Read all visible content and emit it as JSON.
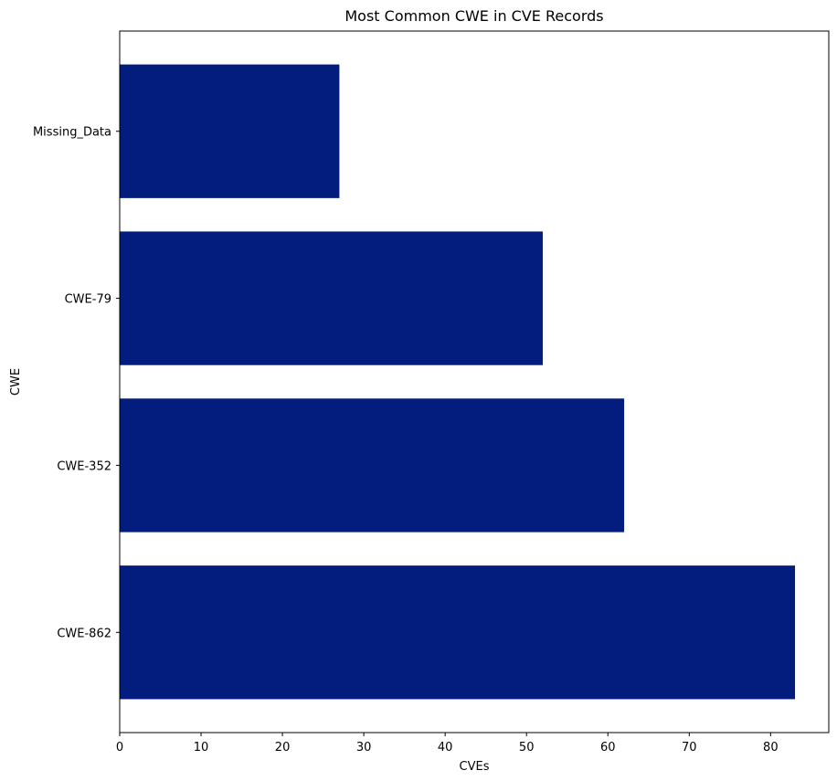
{
  "chart_data": {
    "type": "bar",
    "orientation": "horizontal",
    "title": "Most Common CWE in CVE Records",
    "xlabel": "CVEs",
    "ylabel": "CWE",
    "categories": [
      "CWE-862",
      "CWE-352",
      "CWE-79",
      "Missing_Data"
    ],
    "values": [
      83,
      62,
      52,
      27
    ],
    "xlim": [
      0,
      87.15
    ],
    "xticks": [
      0,
      10,
      20,
      30,
      40,
      50,
      60,
      70,
      80
    ],
    "grid": false,
    "bar_color": "#021d7d"
  }
}
